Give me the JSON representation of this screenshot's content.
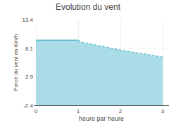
{
  "chart_data": {
    "type": "area",
    "title": "Evolution du vent",
    "xlabel": "heure par heure",
    "ylabel": "Force du vent en Km/h",
    "series": [
      {
        "type": "area",
        "color": "#aadce8",
        "x": [
          0,
          1,
          1.05,
          2,
          3
        ],
        "values": [
          9.6,
          9.6,
          9.3,
          7.8,
          6.5
        ],
        "baseline": -2.4
      },
      {
        "type": "line",
        "line_style": "solid",
        "color": "#5abccc",
        "x": [
          0,
          1
        ],
        "values": [
          9.6,
          9.6
        ]
      },
      {
        "type": "line",
        "line_style": "dotted",
        "color": "#5abccc",
        "x": [
          1,
          1.05,
          2,
          3
        ],
        "values": [
          9.6,
          9.3,
          7.8,
          6.5
        ]
      }
    ],
    "xlim": [
      -0.05,
      3.15
    ],
    "ylim": [
      -2.4,
      13.4
    ],
    "xticks": [
      0,
      1,
      2,
      3
    ],
    "yticks": [
      -2.4,
      2.9,
      8.1,
      13.4
    ],
    "grid": true
  }
}
